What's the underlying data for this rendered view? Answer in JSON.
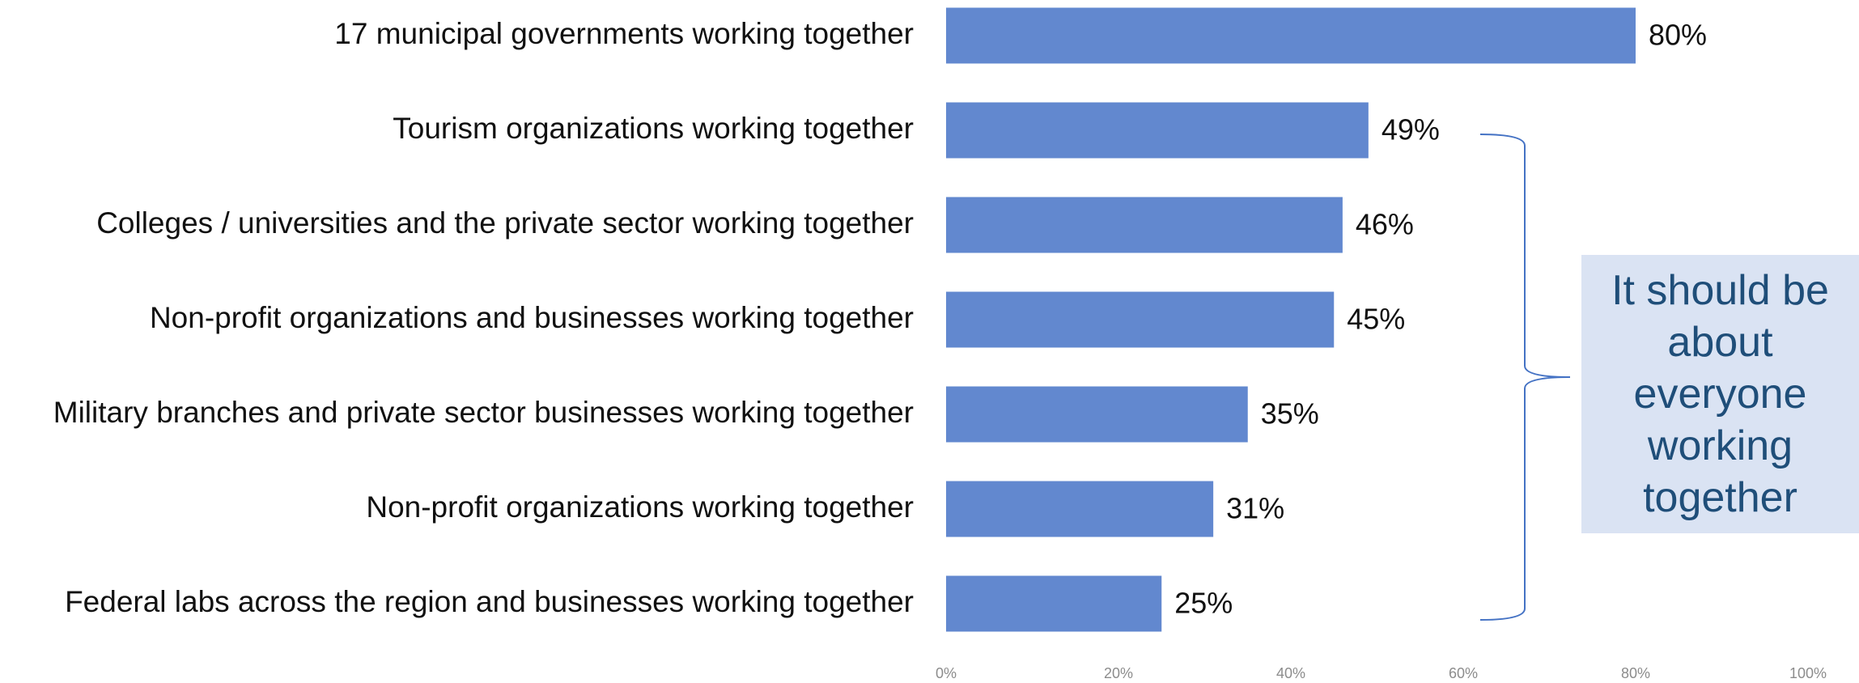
{
  "chart_data": {
    "type": "bar",
    "orientation": "horizontal",
    "categories": [
      "17 municipal governments working together",
      "Tourism organizations working together",
      "Colleges / universities and the private sector working together",
      "Non-profit organizations and businesses working together",
      "Military branches and private sector businesses working together",
      "Non-profit organizations working together",
      "Federal labs across the region and businesses working together"
    ],
    "values": [
      80,
      49,
      46,
      45,
      35,
      31,
      25
    ],
    "value_labels": [
      "80%",
      "49%",
      "46%",
      "45%",
      "35%",
      "31%",
      "25%"
    ],
    "color": "#6288cf",
    "xlim": [
      0,
      100
    ],
    "xticks": [
      {
        "value": 0,
        "label": "0%"
      },
      {
        "value": 20,
        "label": "20%"
      },
      {
        "value": 40,
        "label": "40%"
      },
      {
        "value": 60,
        "label": "60%"
      },
      {
        "value": 80,
        "label": "80%"
      },
      {
        "value": 100,
        "label": "100%"
      }
    ],
    "grid": false,
    "annotation": "It should be about everyone working together"
  }
}
